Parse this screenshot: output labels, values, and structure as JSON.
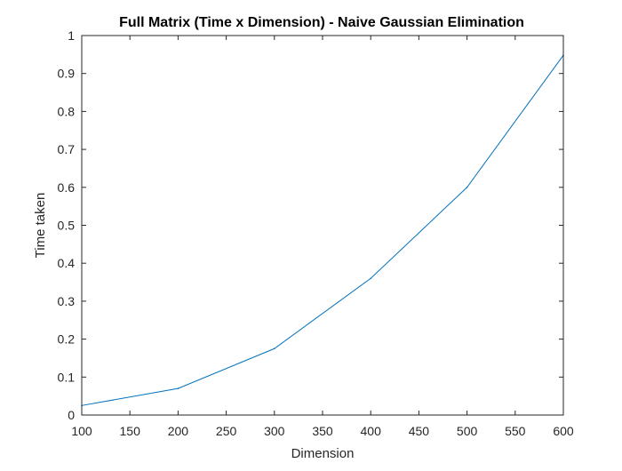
{
  "chart_data": {
    "type": "line",
    "title": "Full Matrix (Time x Dimension) - Naive Gaussian Elimination",
    "xlabel": "Dimension",
    "ylabel": "Time taken",
    "xlim": [
      100,
      600
    ],
    "ylim": [
      0,
      1
    ],
    "xticks": [
      "100",
      "150",
      "200",
      "250",
      "300",
      "350",
      "400",
      "450",
      "500",
      "550",
      "600"
    ],
    "yticks": [
      "0",
      "0.1",
      "0.2",
      "0.3",
      "0.4",
      "0.5",
      "0.6",
      "0.7",
      "0.8",
      "0.9",
      "1"
    ],
    "grid": false,
    "series": [
      {
        "color": "#0072BD",
        "x": [
          100,
          200,
          300,
          400,
          500,
          600
        ],
        "y": [
          0.025,
          0.07,
          0.175,
          0.36,
          0.6,
          0.948
        ]
      }
    ]
  }
}
